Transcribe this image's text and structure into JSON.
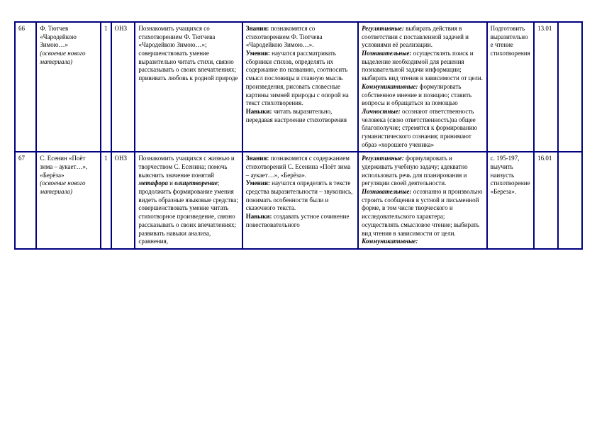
{
  "table": {
    "border_color": "#000080",
    "background_color": "#ffffff",
    "text_color": "#000000",
    "font_family": "Times New Roman",
    "font_size": 9,
    "columns": [
      "num",
      "topic",
      "hours",
      "type",
      "goals",
      "knowledge",
      "uud",
      "hw",
      "date",
      "empty"
    ],
    "rows": [
      {
        "num": "66",
        "topic_title": "Ф. Тютчев «Чародейкою Зимою…»",
        "topic_note": "(освоение нового материала)",
        "hours": "1",
        "type": "ОНЗ",
        "goals": "Познакомить учащихся со стихотворением Ф. Тютчева «Чародейкою Зимою…»; совершенствовать умение выразительно читать стихи, связно рассказывать о своих впечатлениях; прививать любовь к родной природе",
        "knowledge_label1": "Знания:",
        "knowledge_text1": " познакомятся со стихотворением Ф. Тютчева «Чародейкою Зимою…».",
        "knowledge_label2": "Умения:",
        "knowledge_text2": " научатся рассматривать сборники стихов, определять их содержание по названию, соотносить смысл пословицы и главную мысль произведения, рисовать словесные картины зимней природы с опорой на текст стихотворения.",
        "knowledge_label3": "Навыки:",
        "knowledge_text3": " читать выразительно, передавая настроение стихотворения",
        "uud_label1": "Регулятивные:",
        "uud_text1": " выбирать действия в соответствии с поставленной задачей и условиями её реализации.",
        "uud_label2": "Познавательные:",
        "uud_text2": " осуществлять поиск и выделение необходимой для решения познавательной задачи информации; выбирать вид чтения в зависимости от цели.",
        "uud_label3": "Коммуникативные:",
        "uud_text3": " формулировать собственное мнение и позицию; ставить вопросы и обращаться за помощью",
        "uud_label4": "Личностные:",
        "uud_text4": " осознают ответственность человека (свою ответственность)за общее благополучие; стремятся к формированию гуманистического сознания; принимают образ «хорошего ученика»",
        "hw": "Подготовить выразительное чтение стихотворения",
        "date": "13.01",
        "empty": ""
      },
      {
        "num": "67",
        "topic_title": "С. Есенин «Поёт зима – аукает…», «Берёза»",
        "topic_note": "(освоение нового материала)",
        "hours": "1",
        "type": "ОНЗ",
        "goals_pre": "Познакомить учащихся с жизнью и творчеством С. Есенина; помочь выяснить значение понятий ",
        "goals_term1": "метафора",
        "goals_mid": " и ",
        "goals_term2": "олицетворение",
        "goals_post": "; продолжить формирование умения видеть образные языковые средства; совершенствовать умение читать стихотворное произведение, связно рассказывать о своих впечатлениях; развивать навыки анализа, сравнения,",
        "knowledge_label1": "Знания:",
        "knowledge_text1": " познакомятся с содержанием стихотворений С. Есенина «Поёт зима – аукает…», «Берёза».",
        "knowledge_label2": "Умения:",
        "knowledge_text2": " научатся определять в тексте средства выразительности – звукопись, понимать особенности были и сказочного текста.",
        "knowledge_label3": "Навыки:",
        "knowledge_text3": " создавать устное сочинение повествовательного",
        "uud_label1": "Регулятивные:",
        "uud_text1": " формулировать и удерживать учебную задачу; адекватно использовать речь для планирования и регуляции своей деятельности.",
        "uud_label2": "Познавательные:",
        "uud_text2": " осознанно и произвольно строить сообщения в устной и письменной форме, в том числе творческого и исследовательского характера; осуществлять смысловое чтение; выбирать вид чтения в зависимости от цели.",
        "uud_label3": "Коммуникативные:",
        "hw": "с. 195-197, выучить наизусть стихотворение «Береза».",
        "date": "16.01",
        "empty": ""
      }
    ]
  }
}
